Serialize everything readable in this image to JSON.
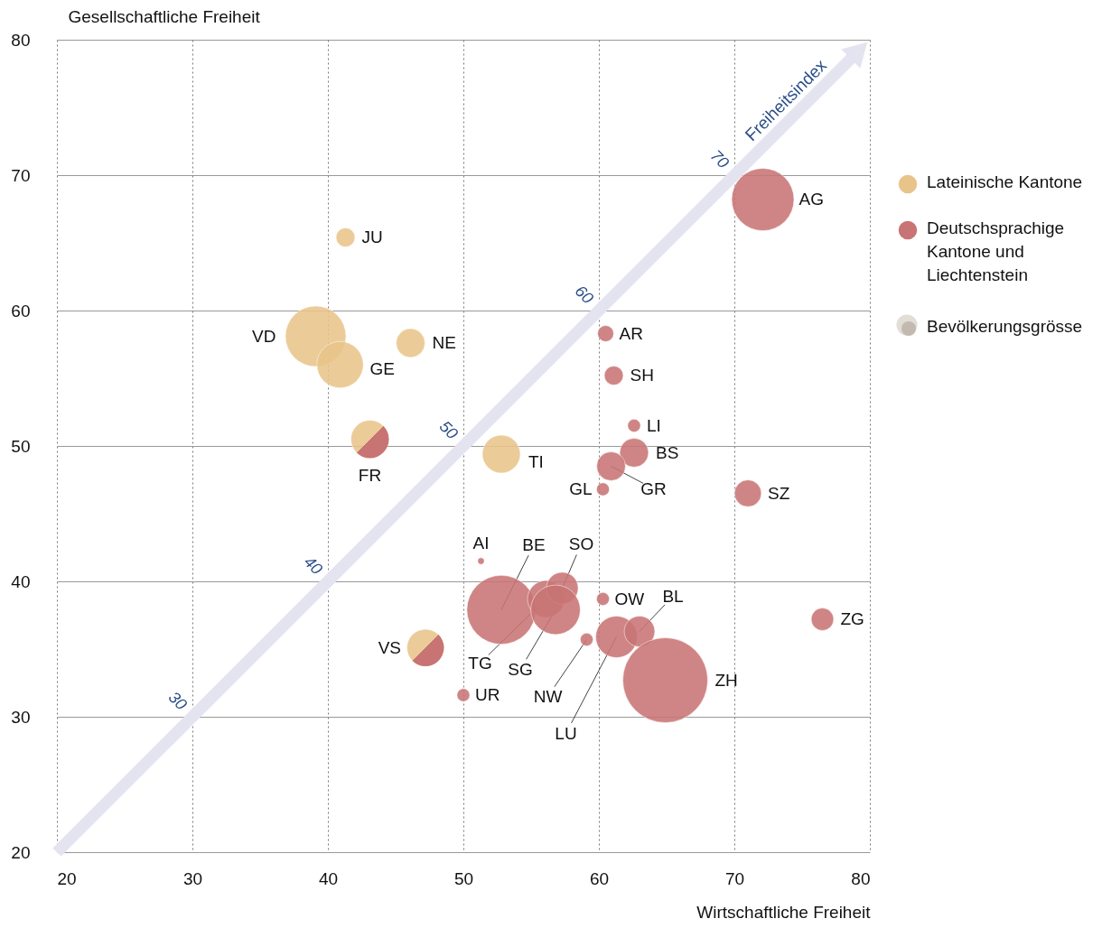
{
  "chart_data": {
    "type": "bubble",
    "xlabel": "Wirtschaftliche Freiheit",
    "ylabel": "Gesellschaftliche Freiheit",
    "xlim": [
      20,
      80
    ],
    "ylim": [
      20,
      80
    ],
    "xticks": [
      20,
      30,
      40,
      50,
      60,
      70,
      80
    ],
    "yticks": [
      20,
      30,
      40,
      50,
      60,
      70,
      80
    ],
    "grid": true,
    "legend": "right",
    "series": [
      {
        "name": "Lateinische Kantone",
        "color": "#e8c48a",
        "x": [
          41.3,
          39.1,
          40.9,
          46.1,
          43.1,
          52.8,
          47.2
        ],
        "values": [
          65.4,
          58.1,
          56.0,
          57.6,
          50.5,
          49.4,
          35.1
        ],
        "sizes": [
          0.05,
          0.51,
          0.3,
          0.115,
          0.2,
          0.2,
          0.19
        ]
      },
      {
        "name": "Deutschsprachige Kantone und Liechtenstein",
        "color": "#c87474",
        "x": [
          72.1,
          60.5,
          61.1,
          62.6,
          62.6,
          60.9,
          60.3,
          71.0,
          76.5,
          51.3,
          52.8,
          56.1,
          57.3,
          56.8,
          60.3,
          59.1,
          61.3,
          63.0,
          64.9,
          50.0,
          43.1,
          47.2
        ],
        "values": [
          68.2,
          58.3,
          55.2,
          51.5,
          49.5,
          48.5,
          46.8,
          46.5,
          37.2,
          41.5,
          37.9,
          38.7,
          39.5,
          37.9,
          38.7,
          35.7,
          35.9,
          36.3,
          32.7,
          31.6,
          50.5,
          35.1
        ],
        "sizes": [
          0.54,
          0.036,
          0.05,
          0.023,
          0.115,
          0.115,
          0.023,
          0.1,
          0.07,
          0.006,
          0.66,
          0.19,
          0.14,
          0.34,
          0.023,
          0.023,
          0.24,
          0.13,
          1,
          0.023,
          0.2,
          0.19
        ]
      }
    ],
    "annotations": [
      {
        "text": "JU",
        "x": 41.3,
        "y": 65.4
      },
      {
        "text": "VD",
        "x": 39.1,
        "y": 58.1
      },
      {
        "text": "GE",
        "x": 40.9,
        "y": 56.0
      },
      {
        "text": "NE",
        "x": 46.1,
        "y": 57.6
      },
      {
        "text": "FR",
        "x": 43.1,
        "y": 50.5
      },
      {
        "text": "TI",
        "x": 52.8,
        "y": 49.4
      },
      {
        "text": "VS",
        "x": 47.2,
        "y": 35.1
      },
      {
        "text": "AG",
        "x": 72.1,
        "y": 68.2
      },
      {
        "text": "AR",
        "x": 60.5,
        "y": 58.3
      },
      {
        "text": "SH",
        "x": 61.1,
        "y": 55.2
      },
      {
        "text": "LI",
        "x": 62.6,
        "y": 51.5
      },
      {
        "text": "BS",
        "x": 62.6,
        "y": 49.5
      },
      {
        "text": "GR",
        "x": 60.9,
        "y": 48.5
      },
      {
        "text": "GL",
        "x": 60.3,
        "y": 46.8
      },
      {
        "text": "SZ",
        "x": 71.0,
        "y": 46.5
      },
      {
        "text": "ZG",
        "x": 76.5,
        "y": 37.2
      },
      {
        "text": "AI",
        "x": 51.3,
        "y": 41.5
      },
      {
        "text": "BE",
        "x": 52.8,
        "y": 37.9
      },
      {
        "text": "TG",
        "x": 56.1,
        "y": 38.7
      },
      {
        "text": "SO",
        "x": 57.3,
        "y": 39.5
      },
      {
        "text": "SG",
        "x": 56.8,
        "y": 37.9
      },
      {
        "text": "OW",
        "x": 60.3,
        "y": 38.7
      },
      {
        "text": "NW",
        "x": 59.1,
        "y": 35.7
      },
      {
        "text": "LU",
        "x": 61.3,
        "y": 35.9
      },
      {
        "text": "BL",
        "x": 63.0,
        "y": 36.3
      },
      {
        "text": "ZH",
        "x": 64.9,
        "y": 32.7
      },
      {
        "text": "UR",
        "x": 50.0,
        "y": 31.6
      },
      "30",
      "40",
      "50",
      "60",
      "70",
      "Freiheitsindex",
      "Bevölkerungsgrösse"
    ]
  }
}
